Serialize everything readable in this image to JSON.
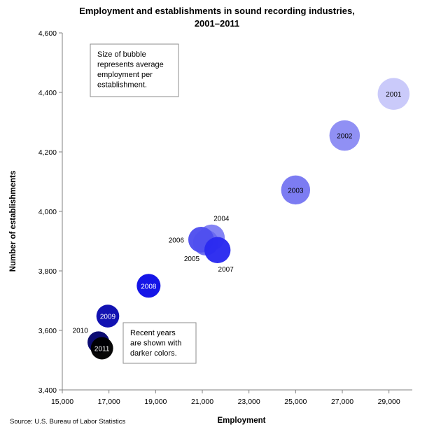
{
  "chart_data": {
    "type": "scatter",
    "bubble": true,
    "title_line1": "Employment and establishments in sound recording industries,",
    "title_line2": "2001–2011",
    "xlabel": "Employment",
    "ylabel": "Number of establishments",
    "xlim": [
      15000,
      30000
    ],
    "ylim": [
      3400,
      4600
    ],
    "x_ticks": [
      15000,
      17000,
      19000,
      21000,
      23000,
      25000,
      27000,
      29000
    ],
    "x_tick_labels": [
      "15,000",
      "17,000",
      "19,000",
      "21,000",
      "23,000",
      "25,000",
      "27,000",
      "29,000"
    ],
    "y_ticks": [
      3400,
      3600,
      3800,
      4000,
      4200,
      4400,
      4600
    ],
    "y_tick_labels": [
      "3,400",
      "3,600",
      "3,800",
      "4,000",
      "4,200",
      "4,400",
      "4,600"
    ],
    "grid": false,
    "points": [
      {
        "label": "2001",
        "x": 29200,
        "y": 4395,
        "size": 6.7,
        "color": "#c8c8fa",
        "label_pos": "center",
        "label_color": "#000000"
      },
      {
        "label": "2002",
        "x": 27100,
        "y": 4255,
        "size": 6.4,
        "color": "#8c8cf4",
        "label_pos": "center",
        "label_color": "#000000"
      },
      {
        "label": "2003",
        "x": 25000,
        "y": 4072,
        "size": 6.1,
        "color": "#7878f2",
        "label_pos": "center",
        "label_color": "#000000"
      },
      {
        "label": "2004",
        "x": 21400,
        "y": 3912,
        "size": 5.5,
        "color": "#8080f4",
        "label_pos": "above-right",
        "label_color": "#000000"
      },
      {
        "label": "2005",
        "x": 21150,
        "y": 3895,
        "size": 5.4,
        "color": "#6a6aef",
        "label_pos": "below-left",
        "label_color": "#000000"
      },
      {
        "label": "2006",
        "x": 20950,
        "y": 3905,
        "size": 5.4,
        "color": "#5050ee",
        "label_pos": "left",
        "label_color": "#000000"
      },
      {
        "label": "2007",
        "x": 21650,
        "y": 3870,
        "size": 5.5,
        "color": "#2a2af0",
        "label_pos": "below-right",
        "label_color": "#000000"
      },
      {
        "label": "2008",
        "x": 18700,
        "y": 3750,
        "size": 5.0,
        "color": "#0d0de6",
        "label_pos": "center",
        "label_color": "#ffffff"
      },
      {
        "label": "2009",
        "x": 16950,
        "y": 3648,
        "size": 4.8,
        "color": "#0a0ab0",
        "label_pos": "center",
        "label_color": "#ffffff"
      },
      {
        "label": "2010",
        "x": 16550,
        "y": 3560,
        "size": 4.6,
        "color": "#05056e",
        "label_pos": "above-left",
        "label_color": "#000000"
      },
      {
        "label": "2011",
        "x": 16700,
        "y": 3540,
        "size": 4.7,
        "color": "#000000",
        "label_pos": "center",
        "label_color": "#ffffff"
      }
    ],
    "annotations": [
      {
        "id": "size-note",
        "lines": [
          "Size of bubble",
          "represents average",
          "employment per",
          "establishment."
        ]
      },
      {
        "id": "color-note",
        "lines": [
          "Recent years",
          "are shown with",
          "darker colors."
        ]
      }
    ],
    "source": "Source: U.S. Bureau of Labor Statistics"
  }
}
